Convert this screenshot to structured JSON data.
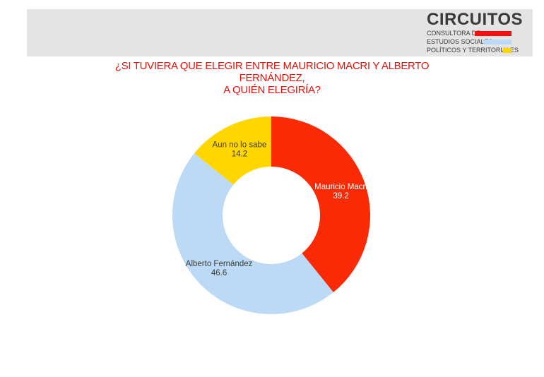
{
  "logo": {
    "title": "CIRCUITOS",
    "line1": "CONSULTORA DE",
    "line2": "ESTUDIOS SOCIALES,",
    "line3": "POLÍTICOS Y TERRITORIALES",
    "bar_colors": [
      "#f50f0f",
      "#b9d9f5",
      "#ffd400"
    ]
  },
  "chart_data": {
    "type": "pie",
    "style": "donut",
    "title_lines": [
      "¿SI TUVIERA QUE ELEGIR ENTRE MAURICIO MACRI Y ALBERTO FERNÁNDEZ,",
      "A QUIÉN ELEGIRÍA?"
    ],
    "categories": [
      "Mauricio Macri",
      "Alberto Fernández",
      "Aun no lo sabe"
    ],
    "values": [
      39.2,
      46.6,
      14.2
    ],
    "colors": [
      "#fa2a05",
      "#bcdaf5",
      "#ffd600"
    ],
    "label_colors": [
      "#ffffff",
      "#3a3a3a",
      "#3a3a3a"
    ]
  }
}
